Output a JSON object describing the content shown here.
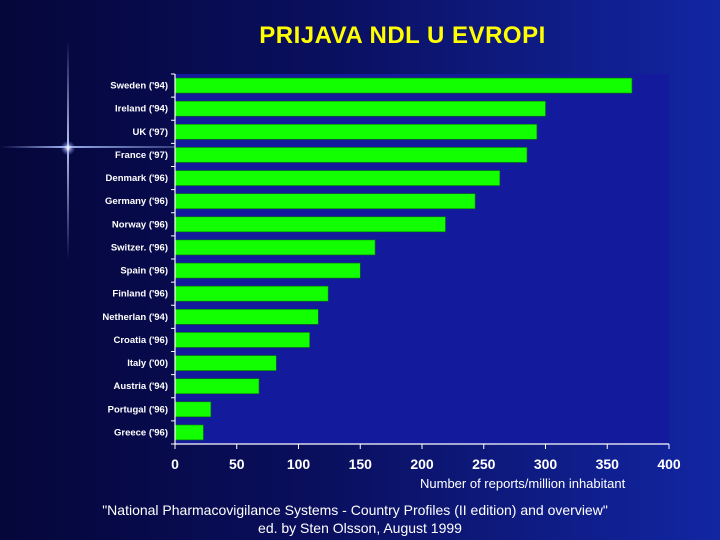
{
  "slide": {
    "title": "PRIJAVA NDL U EVROPI",
    "source_line1": "\"National Pharmacovigilance Systems - Country Profiles (II edition) and overview\"",
    "source_line2": "ed. by Sten Olsson, August 1999"
  },
  "colors": {
    "bar": "#11ff00",
    "bar_border": "#0a7a00",
    "plot_background": "#141a9c",
    "axis": "#ffffff",
    "title": "#ffff00"
  },
  "chart_data": {
    "type": "bar",
    "orientation": "horizontal",
    "title": "PRIJAVA NDL U EVROPI",
    "xlabel": "Number of reports/million inhabitant",
    "ylabel": "",
    "xlim": [
      0,
      400
    ],
    "xticks": [
      0,
      50,
      100,
      150,
      200,
      250,
      300,
      350,
      400
    ],
    "grid": false,
    "categories": [
      "Sweden ('94)",
      "Ireland ('94)",
      "UK ('97)",
      "France ('97)",
      "Denmark ('96)",
      "Germany ('96)",
      "Norway ('96)",
      "Switzer. ('96)",
      "Spain ('96)",
      "Finland ('96)",
      "Netherlan ('94)",
      "Croatia ('96)",
      "Italy ('00)",
      "Austria ('94)",
      "Portugal ('96)",
      "Greece ('96)"
    ],
    "values": [
      370,
      300,
      293,
      285,
      263,
      243,
      219,
      162,
      150,
      124,
      116,
      109,
      82,
      68,
      29,
      23
    ]
  }
}
